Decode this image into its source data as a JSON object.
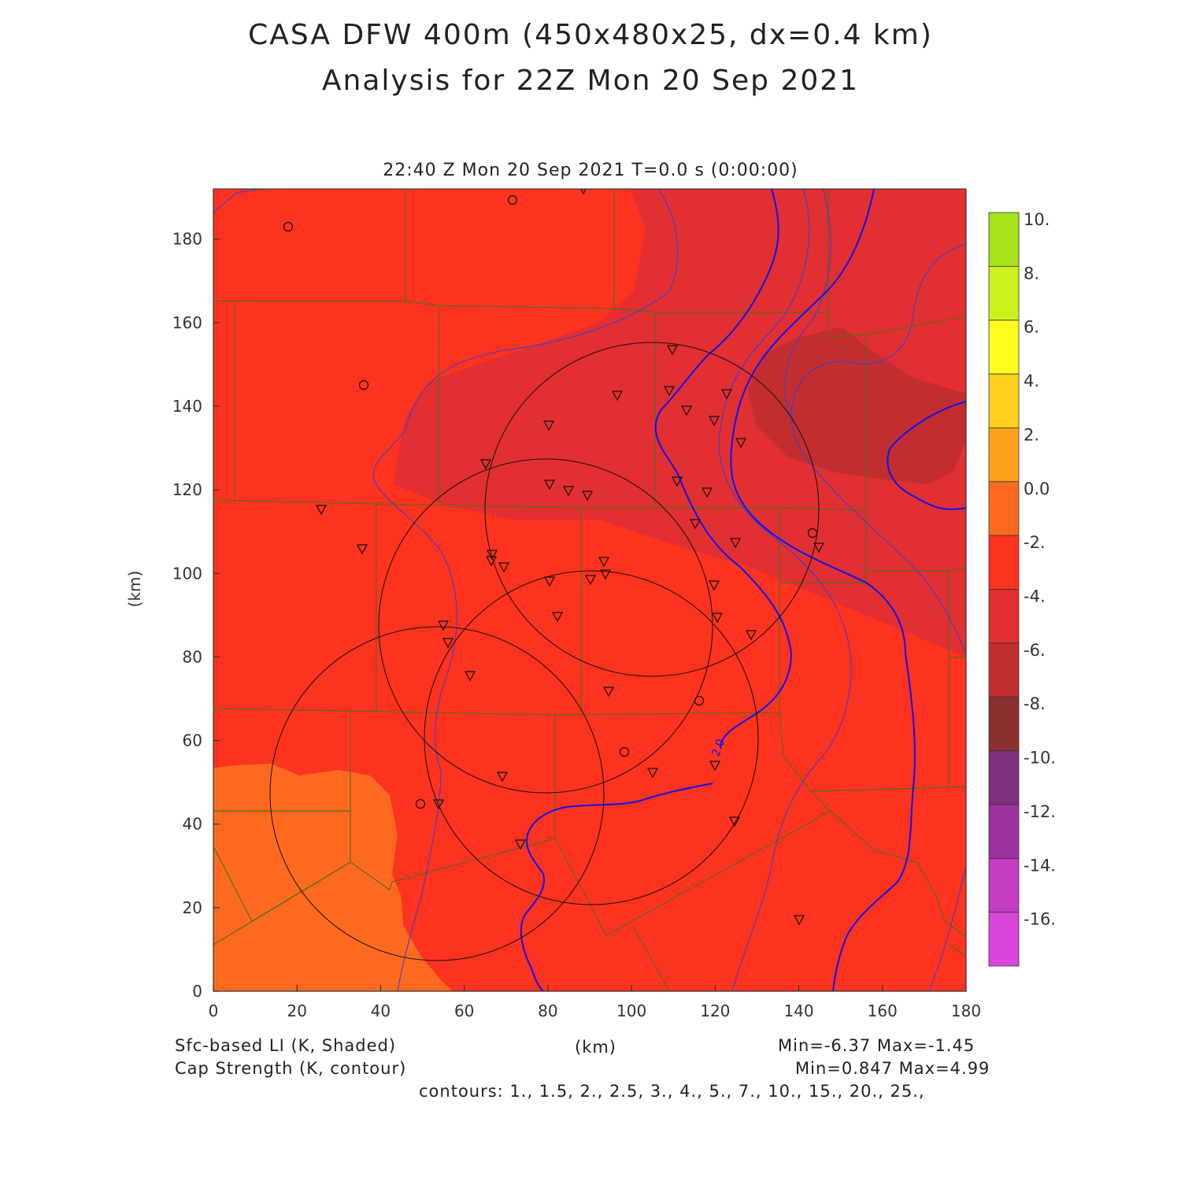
{
  "header": {
    "title_line1": "CASA DFW 400m (450x480x25, dx=0.4 km)",
    "title_line2": "Analysis for 22Z Mon 20 Sep 2021",
    "valid_time": "22:40 Z Mon 20 Sep 2021    T=0.0 s (0:00:00)"
  },
  "axes": {
    "x_label": "(km)",
    "y_label": "(km)",
    "x_ticks": [
      "0",
      "20",
      "40",
      "60",
      "80",
      "100",
      "120",
      "140",
      "160",
      "180"
    ],
    "y_ticks": [
      "0",
      "20",
      "40",
      "60",
      "80",
      "100",
      "120",
      "140",
      "160",
      "180"
    ],
    "x_range": [
      0,
      180
    ],
    "y_range": [
      0,
      192
    ]
  },
  "colorbar": {
    "labels": [
      "10.",
      "8.",
      "6.",
      "4.",
      "2.",
      "0.0",
      "-2.",
      "-4.",
      "-6.",
      "-8.",
      "-10.",
      "-12.",
      "-14.",
      "-16."
    ],
    "colors": [
      "#a6e31c",
      "#ccf21e",
      "#fefe1f",
      "#fdd01e",
      "#fea21c",
      "#fd6a1f",
      "#fd331f",
      "#e22f31",
      "#c22e2f",
      "#8b2f2f",
      "#7d307c",
      "#9d339e",
      "#c43dc1",
      "#d946da"
    ]
  },
  "footer": {
    "field1": "Sfc-based LI (K, Shaded)",
    "field1_range": "Min=-6.37 Max=-1.45",
    "field2": "Cap Strength (K, contour)",
    "field2_range": "Min=0.847 Max=4.99",
    "units_label": "(km)",
    "contours": "contours: 1., 1.5, 2., 2.5, 3., 4., 5., 7., 10., 15., 20., 25.,"
  },
  "map": {
    "contour_label": "2.0",
    "radar_range_rings": 4,
    "station_markers": "triangles and circles"
  }
}
